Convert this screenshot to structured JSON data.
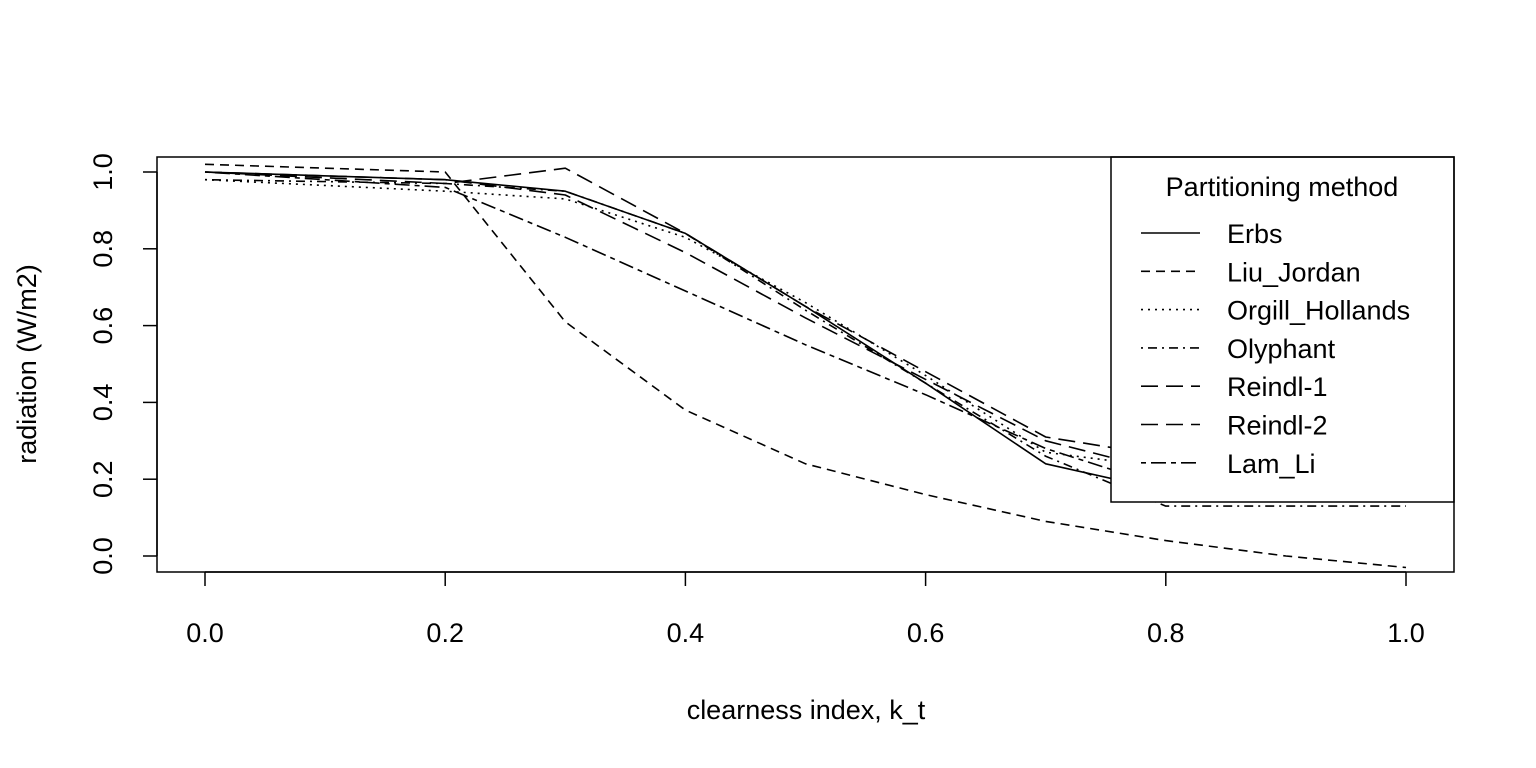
{
  "chart_data": {
    "type": "line",
    "title": "",
    "xlabel": "clearness index, k_t",
    "ylabel": "radiation (W/m2)",
    "xlim": [
      0.0,
      1.0
    ],
    "ylim": [
      0.0,
      1.0
    ],
    "xticks": [
      0.0,
      0.2,
      0.4,
      0.6,
      0.8,
      1.0
    ],
    "xtick_labels": [
      "0.0",
      "0.2",
      "0.4",
      "0.6",
      "0.8",
      "1.0"
    ],
    "yticks": [
      0.0,
      0.2,
      0.4,
      0.6,
      0.8,
      1.0
    ],
    "ytick_labels": [
      "0.0",
      "0.2",
      "0.4",
      "0.6",
      "0.8",
      "1.0"
    ],
    "grid": false,
    "color": "#000000",
    "legend": {
      "title": "Partitioning method",
      "placement": "top-right"
    },
    "series": [
      {
        "name": "Erbs",
        "dash": "solid",
        "x": [
          0.0,
          0.2,
          0.3,
          0.4,
          0.5,
          0.6,
          0.7,
          0.8
        ],
        "y": [
          1.0,
          0.98,
          0.95,
          0.84,
          0.65,
          0.45,
          0.24,
          0.17
        ]
      },
      {
        "name": "Liu_Jordan",
        "dash": "dashed",
        "x": [
          0.0,
          0.2,
          0.3,
          0.4,
          0.5,
          0.6,
          0.7,
          0.8,
          0.9,
          1.0
        ],
        "y": [
          1.02,
          1.0,
          0.61,
          0.38,
          0.24,
          0.16,
          0.09,
          0.04,
          0.0,
          -0.03
        ]
      },
      {
        "name": "Orgill_Hollands",
        "dash": "dotted",
        "x": [
          0.0,
          0.2,
          0.3,
          0.4,
          0.5,
          0.6,
          0.7,
          0.8
        ],
        "y": [
          0.98,
          0.95,
          0.93,
          0.83,
          0.66,
          0.47,
          0.27,
          0.23
        ]
      },
      {
        "name": "Olyphant",
        "dash": "dotdash",
        "x": [
          0.0,
          0.2,
          0.3,
          0.4,
          0.5,
          0.6,
          0.7,
          0.8,
          0.9,
          1.0
        ],
        "y": [
          0.98,
          0.97,
          0.95,
          0.84,
          0.64,
          0.45,
          0.26,
          0.13,
          0.13,
          0.13
        ]
      },
      {
        "name": "Reindl-1",
        "dash": "longdash",
        "x": [
          0.0,
          0.2,
          0.3,
          0.4,
          0.5,
          0.6,
          0.7,
          0.8
        ],
        "y": [
          1.0,
          0.97,
          1.01,
          0.84,
          0.65,
          0.48,
          0.31,
          0.26
        ]
      },
      {
        "name": "Reindl-2",
        "dash": "longdash",
        "x": [
          0.0,
          0.2,
          0.3,
          0.4,
          0.5,
          0.6,
          0.7,
          0.8
        ],
        "y": [
          1.0,
          0.98,
          0.94,
          0.79,
          0.62,
          0.46,
          0.3,
          0.22
        ]
      },
      {
        "name": "Lam_Li",
        "dash": "twodash",
        "x": [
          0.0,
          0.2,
          0.3,
          0.4,
          0.5,
          0.6,
          0.7,
          0.8
        ],
        "y": [
          1.0,
          0.96,
          0.83,
          0.69,
          0.55,
          0.42,
          0.28,
          0.18
        ]
      }
    ]
  }
}
